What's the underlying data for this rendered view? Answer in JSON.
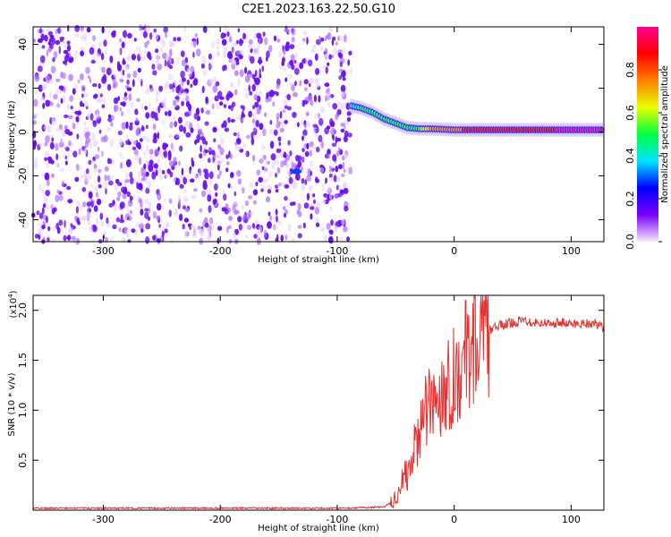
{
  "title": "C2E1.2023.163.22.50.G10",
  "chart_data": [
    {
      "type": "heatmap",
      "xlabel": "Height of straight line (km)",
      "ylabel": "Frequency (Hz)",
      "xlim": [
        -360,
        128
      ],
      "ylim": [
        -50,
        48
      ],
      "xticks": [
        -300,
        -200,
        -100,
        0,
        100
      ],
      "yticks": [
        -40,
        -20,
        0,
        20,
        40
      ],
      "colorbar": {
        "label": "Normalized spectral amplitude",
        "range": [
          0.0,
          1.0
        ],
        "ticks": [
          0.0,
          0.2,
          0.4,
          0.6,
          0.8
        ],
        "colors": [
          "#f7e8ff",
          "#7a00ff",
          "#0000ff",
          "#00e5ff",
          "#00ff40",
          "#e8ff00",
          "#ff8000",
          "#ff0000",
          "#ff0090"
        ]
      },
      "features": {
        "noise_region_x": [
          -360,
          -88
        ],
        "signal_onset_x": -88,
        "signal_track": [
          {
            "x": -88,
            "freq": 12,
            "amp": 0.35
          },
          {
            "x": -80,
            "freq": 11,
            "amp": 0.45
          },
          {
            "x": -70,
            "freq": 9,
            "amp": 0.5
          },
          {
            "x": -60,
            "freq": 6,
            "amp": 0.5
          },
          {
            "x": -50,
            "freq": 4,
            "amp": 0.5
          },
          {
            "x": -40,
            "freq": 2,
            "amp": 0.45
          },
          {
            "x": -30,
            "freq": 1.5,
            "amp": 0.55
          },
          {
            "x": -20,
            "freq": 1.5,
            "amp": 0.7
          },
          {
            "x": 0,
            "freq": 1,
            "amp": 0.8
          },
          {
            "x": 50,
            "freq": 1,
            "amp": 0.9
          },
          {
            "x": 100,
            "freq": 1,
            "amp": 0.95
          },
          {
            "x": 128,
            "freq": 1,
            "amp": 0.95
          }
        ],
        "isolated_blob": {
          "x": -135,
          "freq": -18
        }
      }
    },
    {
      "type": "line",
      "xlabel": "Height of straight line (km)",
      "ylabel": "SNR (10 * v/v)",
      "y_multiplier": "(x10",
      "y_multiplier_exp": "4",
      "y_multiplier_close": ")",
      "xlim": [
        -360,
        128
      ],
      "ylim": [
        0.0,
        2.15
      ],
      "xticks": [
        -300,
        -200,
        -100,
        0,
        100
      ],
      "yticks": [
        0.5,
        1.0,
        1.5,
        2.0
      ],
      "ytick_labels": [
        "0.5",
        "1.0",
        "1.5",
        "2.0"
      ],
      "line_color": "#e83030",
      "series": [
        {
          "x": [
            -360,
            -100,
            -60,
            -50,
            -45,
            -40,
            -35,
            -30,
            -25,
            -20,
            -15,
            -10,
            -5,
            0,
            5,
            10,
            15,
            20,
            25,
            30,
            40,
            50,
            60,
            70,
            80,
            90,
            100,
            110,
            120,
            128
          ],
          "values": [
            0.02,
            0.02,
            0.03,
            0.12,
            0.3,
            0.35,
            0.55,
            0.8,
            0.95,
            1.05,
            1.1,
            1.2,
            1.3,
            1.35,
            1.4,
            1.55,
            1.65,
            1.72,
            1.75,
            1.8,
            1.85,
            1.88,
            1.9,
            1.88,
            1.87,
            1.88,
            1.86,
            1.87,
            1.87,
            1.82
          ]
        }
      ]
    }
  ]
}
